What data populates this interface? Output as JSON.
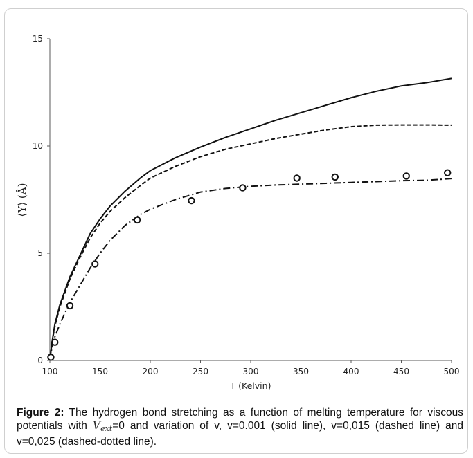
{
  "chart_data": {
    "type": "line",
    "xlabel": "T (Kelvin)",
    "ylabel": "⟨Y⟩ (Å)",
    "xlim": [
      100,
      500
    ],
    "ylim": [
      0,
      15
    ],
    "xticks": [
      "100",
      "150",
      "200",
      "250",
      "300",
      "350",
      "400",
      "450",
      "500"
    ],
    "yticks": [
      "0",
      "5",
      "10",
      "15"
    ],
    "grid": false,
    "series": [
      {
        "style": "solid",
        "x": [
          100,
          102,
          105,
          110,
          120,
          130,
          140,
          150,
          160,
          175,
          190,
          200,
          225,
          250,
          275,
          300,
          325,
          350,
          375,
          400,
          425,
          450,
          475,
          500
        ],
        "y": [
          0,
          0.8,
          1.7,
          2.6,
          3.9,
          4.9,
          5.9,
          6.6,
          7.2,
          7.9,
          8.5,
          8.85,
          9.45,
          9.95,
          10.4,
          10.8,
          11.2,
          11.55,
          11.9,
          12.25,
          12.55,
          12.8,
          12.95,
          13.15
        ]
      },
      {
        "style": "dashed",
        "x": [
          100,
          102,
          105,
          110,
          120,
          130,
          140,
          150,
          160,
          175,
          190,
          200,
          225,
          250,
          275,
          300,
          325,
          350,
          375,
          400,
          425,
          450,
          475,
          500
        ],
        "y": [
          0,
          0.8,
          1.6,
          2.5,
          3.8,
          4.8,
          5.7,
          6.4,
          6.95,
          7.6,
          8.15,
          8.5,
          9.05,
          9.5,
          9.85,
          10.1,
          10.35,
          10.55,
          10.75,
          10.9,
          10.97,
          10.98,
          10.98,
          10.97
        ]
      },
      {
        "style": "dash-dot",
        "x": [
          100,
          102,
          105,
          110,
          120,
          130,
          140,
          150,
          160,
          175,
          190,
          200,
          225,
          250,
          275,
          300,
          325,
          350,
          375,
          400,
          425,
          450,
          475,
          500
        ],
        "y": [
          0,
          0.6,
          1.1,
          1.7,
          2.7,
          3.5,
          4.3,
          5.0,
          5.6,
          6.3,
          6.8,
          7.05,
          7.5,
          7.85,
          8.02,
          8.12,
          8.18,
          8.22,
          8.26,
          8.3,
          8.34,
          8.38,
          8.4,
          8.48
        ]
      }
    ],
    "points": {
      "x": [
        101,
        105,
        120,
        145,
        187,
        241,
        292,
        346,
        384,
        455,
        496
      ],
      "y": [
        0.15,
        0.85,
        2.55,
        4.5,
        6.55,
        7.45,
        8.05,
        8.5,
        8.55,
        8.6,
        8.75
      ]
    }
  },
  "caption": {
    "label": "Figure 2:",
    "text_before": " The hydrogen bond stretching as a function of melting temperature for viscous potentials with ",
    "v_symbol": "V",
    "v_subscript": "ext",
    "text_after": "=0 and variation of v, v=0.001 (solid line), v=0,015 (dashed line) and v=0,025 (dashed-dotted line)."
  }
}
